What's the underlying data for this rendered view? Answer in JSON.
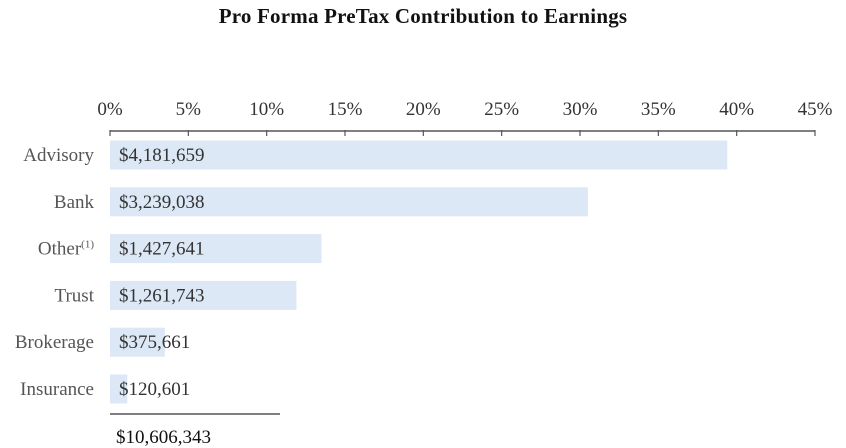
{
  "chart_data": {
    "type": "bar",
    "orientation": "horizontal",
    "title": "Pro Forma PreTax Contribution to Earnings",
    "xlabel": "",
    "ylabel": "",
    "xlim": [
      0,
      45
    ],
    "x_ticks": [
      "0%",
      "5%",
      "10%",
      "15%",
      "20%",
      "25%",
      "30%",
      "35%",
      "40%",
      "45%"
    ],
    "x_tick_values": [
      0,
      5,
      10,
      15,
      20,
      25,
      30,
      35,
      40,
      45
    ],
    "axis_position": "top",
    "grid": false,
    "legend": null,
    "categories": [
      {
        "label": "Advisory",
        "sup": ""
      },
      {
        "label": "Bank",
        "sup": ""
      },
      {
        "label": "Other",
        "sup": "(1)"
      },
      {
        "label": "Trust",
        "sup": ""
      },
      {
        "label": "Brokerage",
        "sup": ""
      },
      {
        "label": "Insurance",
        "sup": ""
      }
    ],
    "values": [
      4181659,
      3239038,
      1427641,
      1261743,
      375661,
      120601
    ],
    "percent_values": [
      39.4,
      30.5,
      13.5,
      11.9,
      3.5,
      1.1
    ],
    "data_labels": [
      "$4,181,659",
      "$3,239,038",
      "$1,427,641",
      "$1,261,743",
      "$375,661",
      "$120,601"
    ],
    "total_label": "$10,606,343",
    "bar_color": "#dce8f5",
    "axis_color": "#555555"
  }
}
